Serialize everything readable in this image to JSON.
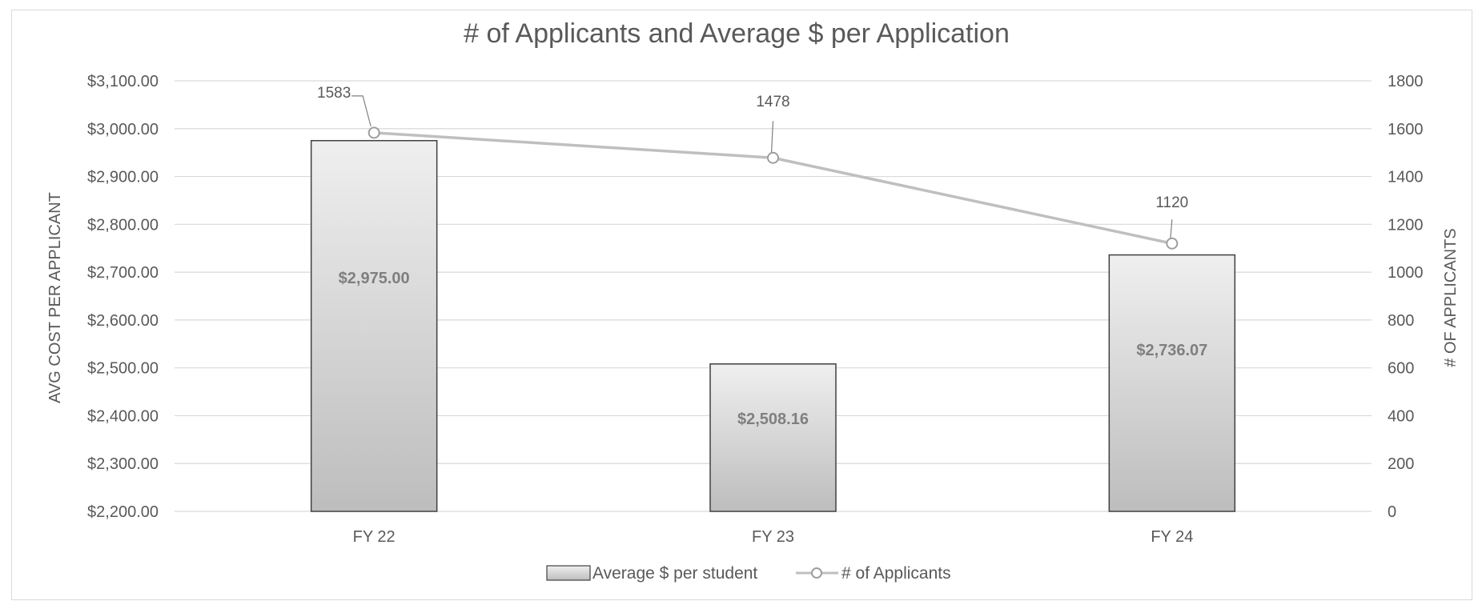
{
  "chart_data": {
    "type": "bar",
    "title": "# of Applicants and Average $ per Application",
    "categories": [
      "FY 22",
      "FY 23",
      "FY 24"
    ],
    "series": [
      {
        "name": "Average $ per student",
        "type": "bar",
        "axis": "left",
        "values": [
          2975.0,
          2508.16,
          2736.07
        ],
        "labels": [
          "$2,975.00",
          "$2,508.16",
          "$2,736.07"
        ]
      },
      {
        "name": "# of Applicants",
        "type": "line",
        "axis": "right",
        "values": [
          1583,
          1478,
          1120
        ],
        "labels": [
          "1583",
          "1478",
          "1120"
        ]
      }
    ],
    "ylabel": "AVG COST PER APPLICANT",
    "y2label": "# OF APPLICANTS",
    "xlabel": "",
    "ylim": [
      2200,
      3100
    ],
    "y2lim": [
      0,
      1800
    ],
    "yticks": [
      "$2,200.00",
      "$2,300.00",
      "$2,400.00",
      "$2,500.00",
      "$2,600.00",
      "$2,700.00",
      "$2,800.00",
      "$2,900.00",
      "$3,000.00",
      "$3,100.00"
    ],
    "y2ticks": [
      "0",
      "200",
      "400",
      "600",
      "800",
      "1000",
      "1200",
      "1400",
      "1600",
      "1800"
    ],
    "grid": true,
    "legend_position": "bottom",
    "colors": {
      "bar_top": "#efefef",
      "bar_bottom": "#bdbdbd",
      "bar_border": "#404040",
      "line": "#bfbfbf",
      "gridline": "#d9d9d9",
      "text": "#595959",
      "bar_label": "#7f7f7f"
    }
  }
}
